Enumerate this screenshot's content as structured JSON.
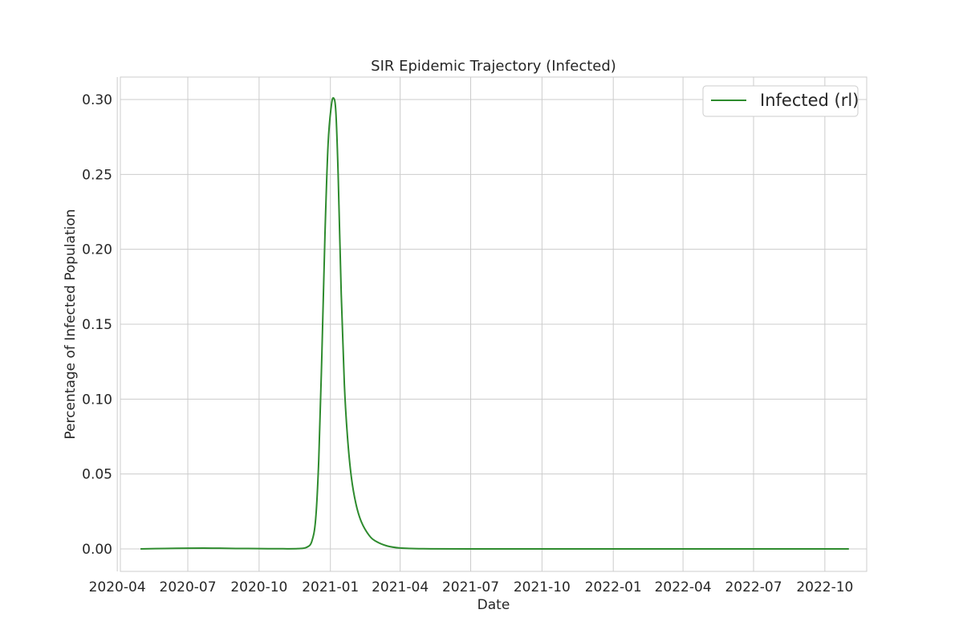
{
  "chart_data": {
    "type": "line",
    "title": "SIR Epidemic Trajectory (Infected)",
    "xlabel": "Date",
    "ylabel": "Percentage of Infected Population",
    "x_axis_type": "date",
    "xlim": [
      "2020-04-05",
      "2022-11-24"
    ],
    "ylim": [
      -0.015,
      0.315
    ],
    "x_ticks": [
      "2020-04-01",
      "2020-07-01",
      "2020-10-01",
      "2021-01-01",
      "2021-04-01",
      "2021-07-01",
      "2021-10-01",
      "2022-01-01",
      "2022-04-01",
      "2022-07-01",
      "2022-10-01"
    ],
    "x_tick_labels": [
      "2020-04",
      "2020-07",
      "2020-10",
      "2021-01",
      "2021-04",
      "2021-07",
      "2021-10",
      "2022-01",
      "2022-04",
      "2022-07",
      "2022-10"
    ],
    "y_ticks": [
      0.0,
      0.05,
      0.1,
      0.15,
      0.2,
      0.25,
      0.3
    ],
    "y_tick_labels": [
      "0.00",
      "0.05",
      "0.10",
      "0.15",
      "0.20",
      "0.25",
      "0.30"
    ],
    "grid": true,
    "legend_position": "top-right",
    "series": [
      {
        "name": "Infected (rl)",
        "color": "#2e8b2e",
        "points": [
          [
            "2020-05-01",
            0.0
          ],
          [
            "2020-06-01",
            0.0003
          ],
          [
            "2020-07-01",
            0.0005
          ],
          [
            "2020-08-01",
            0.0005
          ],
          [
            "2020-09-01",
            0.0003
          ],
          [
            "2020-10-01",
            0.0002
          ],
          [
            "2020-11-01",
            0.0001
          ],
          [
            "2020-11-20",
            0.0002
          ],
          [
            "2020-12-01",
            0.001
          ],
          [
            "2020-12-08",
            0.005
          ],
          [
            "2020-12-13",
            0.02
          ],
          [
            "2020-12-17",
            0.06
          ],
          [
            "2020-12-21",
            0.13
          ],
          [
            "2020-12-25",
            0.21
          ],
          [
            "2020-12-29",
            0.27
          ],
          [
            "2021-01-02",
            0.295
          ],
          [
            "2021-01-05",
            0.301
          ],
          [
            "2021-01-08",
            0.292
          ],
          [
            "2021-01-11",
            0.25
          ],
          [
            "2021-01-15",
            0.17
          ],
          [
            "2021-01-19",
            0.11
          ],
          [
            "2021-01-23",
            0.075
          ],
          [
            "2021-01-28",
            0.048
          ],
          [
            "2021-02-03",
            0.03
          ],
          [
            "2021-02-10",
            0.018
          ],
          [
            "2021-02-20",
            0.009
          ],
          [
            "2021-03-01",
            0.005
          ],
          [
            "2021-03-15",
            0.002
          ],
          [
            "2021-04-01",
            0.0006
          ],
          [
            "2021-05-01",
            0.0001
          ],
          [
            "2021-07-01",
            0.0
          ],
          [
            "2022-01-01",
            0.0
          ],
          [
            "2022-07-01",
            0.0
          ],
          [
            "2022-11-01",
            0.0
          ]
        ]
      }
    ]
  }
}
